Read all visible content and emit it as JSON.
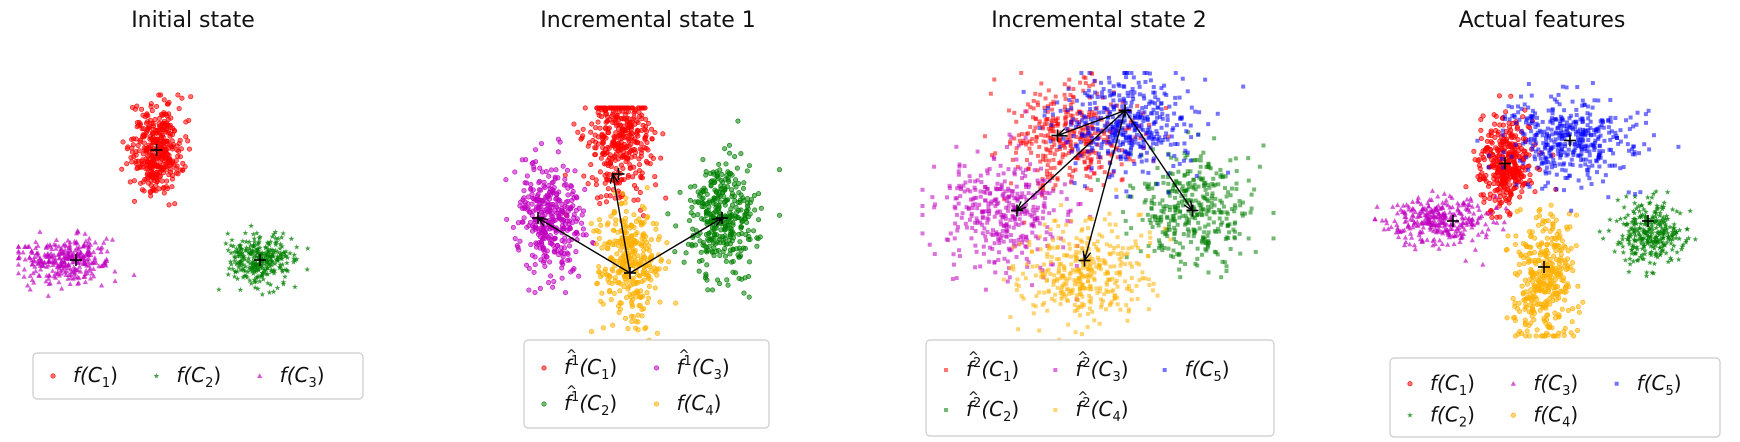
{
  "chart_data": [
    {
      "type": "scatter",
      "title": "Initial state",
      "legend_columns": 3,
      "series": [
        {
          "name": "f(C_1)",
          "label": {
            "base": "f(C",
            "sub": "1",
            "end": ")"
          },
          "color": "#ff0000",
          "marker": "circle",
          "cluster": {
            "x": -1,
            "y": 5,
            "sx": 1.1,
            "sy": 2.0,
            "n": 380
          }
        },
        {
          "name": "f(C_2)",
          "label": {
            "base": "f(C",
            "sub": "2",
            "end": ")"
          },
          "color": "#008000",
          "marker": "star",
          "cluster": {
            "x": 8,
            "y": -5,
            "sx": 1.4,
            "sy": 1.2,
            "n": 300
          }
        },
        {
          "name": "f(C_3)",
          "label": {
            "base": "f(C",
            "sub": "3",
            "end": ")"
          },
          "color": "#c000c0",
          "marker": "triangle",
          "cluster": {
            "x": -9,
            "y": -5,
            "sx": 2.0,
            "sy": 1.1,
            "n": 320
          }
        }
      ],
      "centroids": [
        {
          "x": -1,
          "y": 5
        },
        {
          "x": 8,
          "y": -5
        },
        {
          "x": -8,
          "y": -5
        }
      ],
      "arrows": []
    },
    {
      "type": "scatter",
      "title": "Incremental state 1",
      "legend_columns": 2,
      "series": [
        {
          "name": "f^1(C_1)",
          "label": {
            "base": "f",
            "hat": true,
            "sup": "1",
            "mid": "(C",
            "sub": "1",
            "end": ")"
          },
          "color": "#ff0000",
          "marker": "circle",
          "cluster": {
            "x": -1,
            "y": 7,
            "sx": 1.4,
            "sy": 2.5,
            "n": 380
          }
        },
        {
          "name": "f^1(C_2)",
          "label": {
            "base": "f",
            "hat": true,
            "sup": "1",
            "mid": "(C",
            "sub": "2",
            "end": ")"
          },
          "color": "#008000",
          "marker": "circle",
          "cluster": {
            "x": 8,
            "y": 0,
            "sx": 1.5,
            "sy": 2.6,
            "n": 360
          }
        },
        {
          "name": "f^1(C_3)",
          "label": {
            "base": "f",
            "hat": true,
            "sup": "1",
            "mid": "(C",
            "sub": "3",
            "end": ")"
          },
          "color": "#c000c0",
          "marker": "circle",
          "cluster": {
            "x": -7,
            "y": 0,
            "sx": 1.4,
            "sy": 2.6,
            "n": 360
          }
        },
        {
          "name": "f(C_4)",
          "label": {
            "base": "f(C",
            "sub": "4",
            "end": ")"
          },
          "color": "#ffb000",
          "marker": "circle",
          "cluster": {
            "x": 0,
            "y": -4,
            "sx": 1.4,
            "sy": 2.6,
            "n": 340
          }
        }
      ],
      "centroids": [
        {
          "x": -1,
          "y": 4
        },
        {
          "x": 8,
          "y": 0
        },
        {
          "x": -8,
          "y": 0
        },
        {
          "x": 0,
          "y": -5
        }
      ],
      "arrows": [
        {
          "from": [
            0,
            -5
          ],
          "to": [
            -1.5,
            4
          ]
        },
        {
          "from": [
            0,
            -5
          ],
          "to": [
            -8,
            0
          ]
        },
        {
          "from": [
            0,
            -5
          ],
          "to": [
            8,
            0
          ]
        }
      ]
    },
    {
      "type": "scatter",
      "title": "Incremental state 2",
      "legend_columns": 3,
      "series": [
        {
          "name": "f^2(C_1)",
          "label": {
            "base": "f",
            "hat": true,
            "sup": "2",
            "mid": "(C",
            "sub": "1",
            "end": ")"
          },
          "color": "#ff0000",
          "marker": "square",
          "cluster": {
            "x": -2,
            "y": 5,
            "sx": 2.3,
            "sy": 2.0,
            "n": 380
          }
        },
        {
          "name": "f^2(C_2)",
          "label": {
            "base": "f",
            "hat": true,
            "sup": "2",
            "mid": "(C",
            "sub": "2",
            "end": ")"
          },
          "color": "#008000",
          "marker": "square",
          "cluster": {
            "x": 7,
            "y": -1,
            "sx": 2.2,
            "sy": 2.2,
            "n": 380
          }
        },
        {
          "name": "f^2(C_3)",
          "label": {
            "base": "f",
            "hat": true,
            "sup": "2",
            "mid": "(C",
            "sub": "3",
            "end": ")"
          },
          "color": "#c000c0",
          "marker": "square",
          "cluster": {
            "x": -7,
            "y": -1,
            "sx": 2.5,
            "sy": 2.3,
            "n": 380
          }
        },
        {
          "name": "f^2(C_4)",
          "label": {
            "base": "f",
            "hat": true,
            "sup": "2",
            "mid": "(C",
            "sub": "4",
            "end": ")"
          },
          "color": "#ffb000",
          "marker": "square",
          "cluster": {
            "x": -1,
            "y": -6,
            "sx": 2.4,
            "sy": 2.0,
            "n": 380
          }
        },
        {
          "name": "f(C_5)",
          "label": {
            "base": "f(C",
            "sub": "5",
            "end": ")"
          },
          "color": "#0000ff",
          "marker": "square",
          "cluster": {
            "x": 2,
            "y": 6,
            "sx": 2.5,
            "sy": 2.0,
            "n": 400
          }
        }
      ],
      "centroids": [
        {
          "x": 2,
          "y": 7
        },
        {
          "x": -3,
          "y": 5
        },
        {
          "x": -6,
          "y": -1
        },
        {
          "x": 7,
          "y": -1
        },
        {
          "x": -1,
          "y": -5
        }
      ],
      "arrows": [
        {
          "from": [
            2,
            7
          ],
          "to": [
            -3,
            5
          ]
        },
        {
          "from": [
            2,
            7
          ],
          "to": [
            -6,
            -1
          ]
        },
        {
          "from": [
            2,
            7
          ],
          "to": [
            7,
            -1
          ]
        },
        {
          "from": [
            2,
            7
          ],
          "to": [
            -1,
            -5
          ]
        }
      ]
    },
    {
      "type": "scatter",
      "title": "Actual features",
      "legend_columns": 3,
      "series": [
        {
          "name": "f(C_1)",
          "label": {
            "base": "f(C",
            "sub": "1",
            "end": ")"
          },
          "color": "#ff0000",
          "marker": "circle",
          "cluster": {
            "x": -3,
            "y": 3,
            "sx": 1.1,
            "sy": 2.0,
            "n": 360
          }
        },
        {
          "name": "f(C_2)",
          "label": {
            "base": "f(C",
            "sub": "2",
            "end": ")"
          },
          "color": "#008000",
          "marker": "star",
          "cluster": {
            "x": 8,
            "y": -3,
            "sx": 1.3,
            "sy": 1.4,
            "n": 300
          }
        },
        {
          "name": "f(C_3)",
          "label": {
            "base": "f(C",
            "sub": "3",
            "end": ")"
          },
          "color": "#c000c0",
          "marker": "triangle",
          "cluster": {
            "x": -8,
            "y": -2,
            "sx": 2.1,
            "sy": 1.0,
            "n": 320
          }
        },
        {
          "name": "f(C_4)",
          "label": {
            "base": "f(C",
            "sub": "4",
            "end": ")"
          },
          "color": "#ffb000",
          "marker": "circle",
          "cluster": {
            "x": 0,
            "y": -7,
            "sx": 1.2,
            "sy": 2.8,
            "n": 360
          }
        },
        {
          "name": "f(C_5)",
          "label": {
            "base": "f(C",
            "sub": "5",
            "end": ")"
          },
          "color": "#0000ff",
          "marker": "square",
          "cluster": {
            "x": 2,
            "y": 5,
            "sx": 2.5,
            "sy": 1.8,
            "n": 420
          }
        }
      ],
      "centroids": [
        {
          "x": -3,
          "y": 3
        },
        {
          "x": 2,
          "y": 5
        },
        {
          "x": 8,
          "y": -2
        },
        {
          "x": -7,
          "y": -2
        },
        {
          "x": 0,
          "y": -6
        }
      ],
      "arrows": []
    }
  ]
}
